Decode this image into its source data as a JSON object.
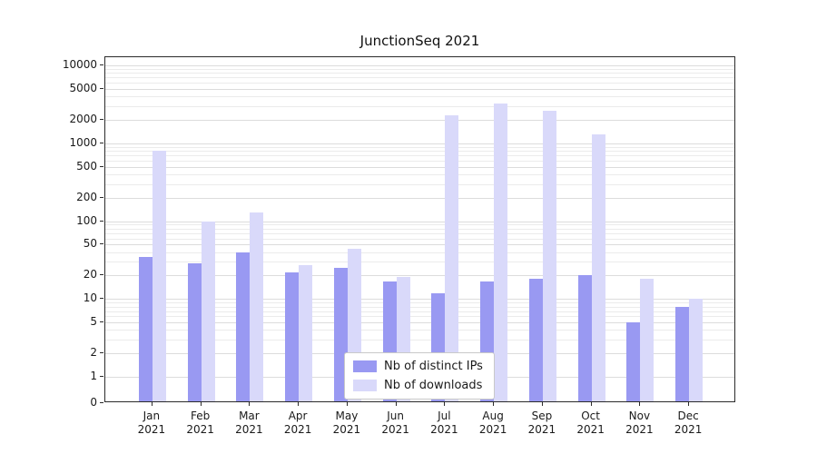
{
  "chart_data": {
    "type": "bar",
    "title": "JunctionSeq 2021",
    "categories": [
      "Jan 2021",
      "Feb 2021",
      "Mar 2021",
      "Apr 2021",
      "May 2021",
      "Jun 2021",
      "Jul 2021",
      "Aug 2021",
      "Sep 2021",
      "Oct 2021",
      "Nov 2021",
      "Dec 2021"
    ],
    "series": [
      {
        "name": "Nb of distinct IPs",
        "color": "#9999f2",
        "values": [
          35,
          29,
          40,
          22,
          25,
          17,
          12,
          17,
          18,
          20,
          5,
          8
        ]
      },
      {
        "name": "Nb of downloads",
        "color": "#d9d9fa",
        "values": [
          800,
          100,
          130,
          27,
          44,
          19,
          2300,
          3200,
          2600,
          1300,
          18,
          10
        ]
      }
    ],
    "yticks": [
      0,
      1,
      2,
      5,
      10,
      20,
      50,
      100,
      200,
      500,
      1000,
      2000,
      5000,
      10000
    ],
    "ylim": [
      0,
      10000
    ],
    "yscale": "log (with 0 baseline)",
    "xlabel": "",
    "ylabel": "",
    "grid": "horizontal major+minor, light gray",
    "legend": {
      "position": "bottom-center-inside",
      "labels": [
        "Nb of distinct IPs",
        "Nb of downloads"
      ]
    },
    "colors": {
      "distinct_ips": "#9999f2",
      "downloads": "#d9d9fa",
      "grid": "#ebebeb",
      "axis": "#2b2b2b",
      "background": "#ffffff"
    }
  }
}
